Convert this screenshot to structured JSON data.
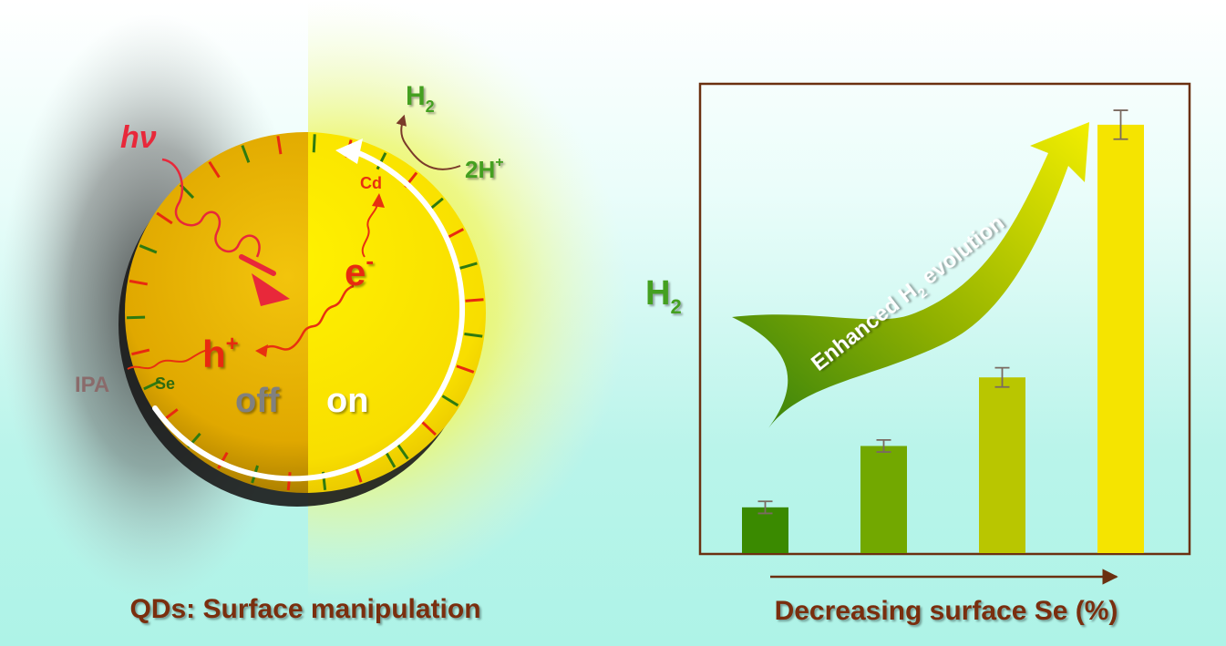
{
  "left_panel": {
    "caption": "QDs: Surface manipulation",
    "photon_label": "hν",
    "electron_label": "e",
    "electron_sup": "-",
    "hole_label": "h",
    "hole_sup": "+",
    "cd_label": "Cd",
    "se_label": "Se",
    "ipa_label": "IPA",
    "off_label": "off",
    "on_label": "on",
    "product_label": "H",
    "product_sub": "2",
    "reactant_label": "2H",
    "reactant_sup": "+"
  },
  "right_panel": {
    "caption": "Decreasing surface Se (%)",
    "arrow_label_pre": "Enhanced H",
    "arrow_label_sub": "2",
    "arrow_label_post": " evolution",
    "y_label": "H",
    "y_label_sub": "2"
  },
  "chart_data": {
    "type": "bar",
    "values": [
      0.38,
      0.89,
      1.46,
      3.56
    ],
    "errors": [
      0.05,
      0.05,
      0.08,
      0.12
    ],
    "ylim": [
      0,
      3.9
    ],
    "colors": [
      "#3a8a00",
      "#72a800",
      "#b9c600",
      "#f5e400"
    ]
  },
  "colors": {
    "caption": "#7a2e0e",
    "green_text": "#44a020",
    "red_text": "#e01818",
    "sphere": "#f4c20a",
    "frame": "#6b3010"
  }
}
